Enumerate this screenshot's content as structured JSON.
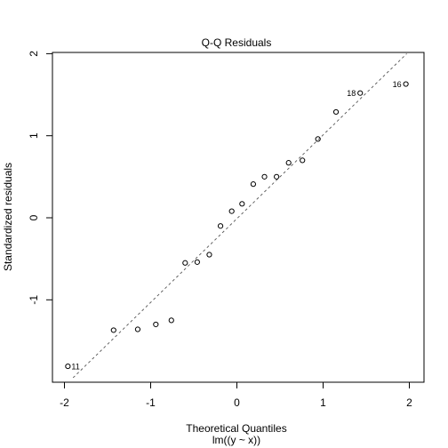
{
  "chart_data": {
    "type": "scatter",
    "title": "Q-Q Residuals",
    "xlabel": "Theoretical Quantiles",
    "subtitle": "lm((y ~ x))",
    "ylabel": "Standardized residuals",
    "xlim": [
      -2.0,
      2.0
    ],
    "ylim": [
      -1.95,
      2.0
    ],
    "xticks": [
      "-2",
      "-1",
      "0",
      "1",
      "2"
    ],
    "yticks": [
      "-1",
      "0",
      "1",
      "2"
    ],
    "grid": false,
    "reference_line": {
      "style": "dashed",
      "points": [
        [
          -1.9,
          -1.95
        ],
        [
          1.97,
          2.0
        ]
      ]
    },
    "points": [
      {
        "x": -1.96,
        "y": -1.81,
        "label": "11"
      },
      {
        "x": -1.43,
        "y": -1.37
      },
      {
        "x": -1.15,
        "y": -1.36
      },
      {
        "x": -0.94,
        "y": -1.3
      },
      {
        "x": -0.76,
        "y": -1.25
      },
      {
        "x": -0.6,
        "y": -0.55
      },
      {
        "x": -0.46,
        "y": -0.54
      },
      {
        "x": -0.32,
        "y": -0.45
      },
      {
        "x": -0.19,
        "y": -0.1
      },
      {
        "x": -0.06,
        "y": 0.08
      },
      {
        "x": 0.06,
        "y": 0.17
      },
      {
        "x": 0.19,
        "y": 0.41
      },
      {
        "x": 0.32,
        "y": 0.5
      },
      {
        "x": 0.46,
        "y": 0.5
      },
      {
        "x": 0.6,
        "y": 0.67
      },
      {
        "x": 0.76,
        "y": 0.7
      },
      {
        "x": 0.94,
        "y": 0.96
      },
      {
        "x": 1.15,
        "y": 1.29
      },
      {
        "x": 1.43,
        "y": 1.52,
        "label": "18"
      },
      {
        "x": 1.96,
        "y": 1.63,
        "label": "16"
      }
    ]
  }
}
